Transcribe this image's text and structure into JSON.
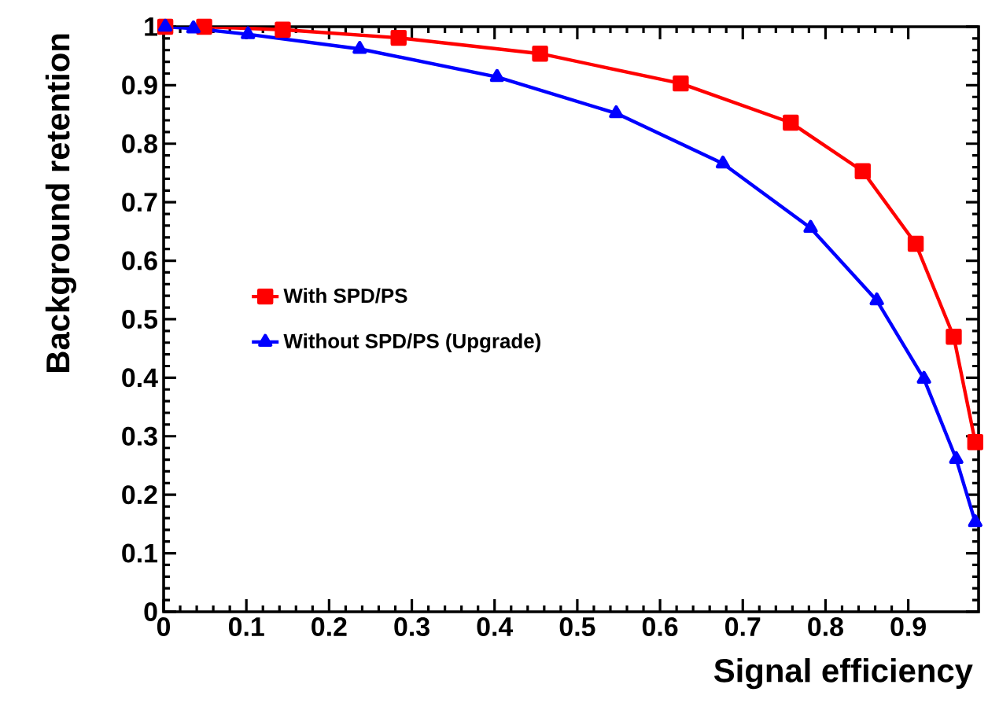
{
  "chart_data": {
    "type": "line",
    "xlabel": "Signal efficiency",
    "ylabel": "Background retention",
    "xlim": [
      0,
      0.985
    ],
    "ylim": [
      0,
      1
    ],
    "xticks": [
      0,
      0.1,
      0.2,
      0.3,
      0.4,
      0.5,
      0.6,
      0.7,
      0.8,
      0.9
    ],
    "yticks": [
      0,
      0.1,
      0.2,
      0.3,
      0.4,
      0.5,
      0.6,
      0.7,
      0.8,
      0.9,
      1
    ],
    "grid": false,
    "legend": "left",
    "series": [
      {
        "name": "With SPD/PS",
        "color": "#ff0000",
        "marker": "square",
        "x": [
          0.002,
          0.049,
          0.144,
          0.284,
          0.455,
          0.625,
          0.758,
          0.845,
          0.909,
          0.955,
          0.981
        ],
        "values": [
          1.0,
          1.0,
          0.995,
          0.981,
          0.954,
          0.903,
          0.836,
          0.753,
          0.629,
          0.47,
          0.29
        ]
      },
      {
        "name": "Without SPD/PS (Upgrade)",
        "color": "#0000ff",
        "marker": "triangle",
        "x": [
          0.002,
          0.036,
          0.102,
          0.237,
          0.403,
          0.547,
          0.676,
          0.782,
          0.862,
          0.919,
          0.958,
          0.981
        ],
        "values": [
          1.0,
          0.997,
          0.987,
          0.962,
          0.914,
          0.852,
          0.766,
          0.656,
          0.532,
          0.398,
          0.261,
          0.153
        ]
      }
    ]
  }
}
